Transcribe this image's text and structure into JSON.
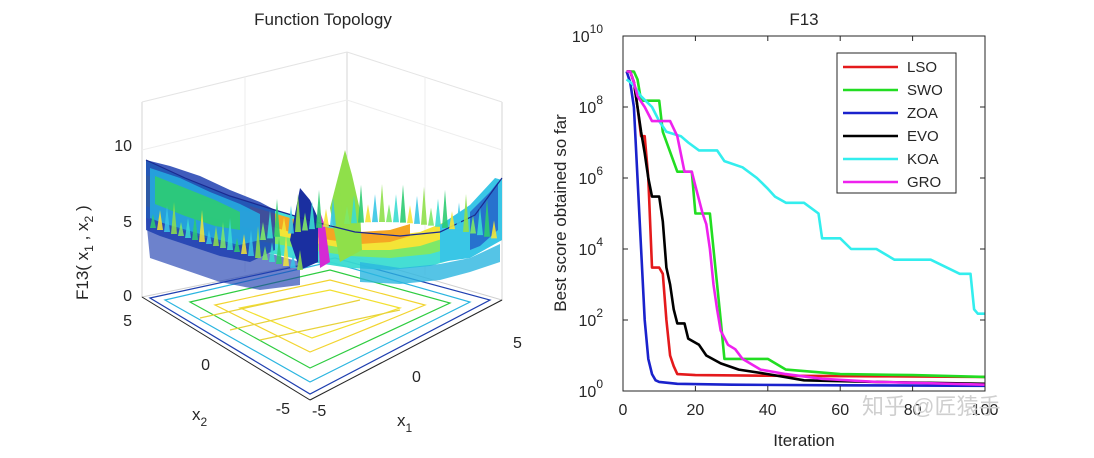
{
  "left_panel": {
    "title": "Function Topology",
    "zlabel": "F13( x",
    "zlabel_sub1": "1",
    "zlabel_mid": " , x",
    "zlabel_sub2": "2",
    "zlabel_end": " )",
    "xlabel": "x",
    "xlabel_sub": "1",
    "ylabel": "x",
    "ylabel_sub": "2",
    "z_ticks": [
      "0",
      "5",
      "10"
    ],
    "x1_ticks": [
      "-5",
      "0",
      "5"
    ],
    "x2_ticks": [
      "-5",
      "0",
      "5"
    ]
  },
  "chart_data": {
    "type": "line",
    "title": "F13",
    "xlabel": "Iteration",
    "ylabel": "Best score obtained so far",
    "xlim": [
      0,
      100
    ],
    "ylim": [
      1,
      10000000000
    ],
    "yscale": "log",
    "x_ticks": [
      "0",
      "20",
      "40",
      "60",
      "80",
      "100"
    ],
    "y_ticks": [
      {
        "base": "10",
        "exp": "0"
      },
      {
        "base": "10",
        "exp": "2"
      },
      {
        "base": "10",
        "exp": "4"
      },
      {
        "base": "10",
        "exp": "6"
      },
      {
        "base": "10",
        "exp": "8"
      },
      {
        "base": "10",
        "exp": "10"
      }
    ],
    "legend_position": "top-right",
    "grid": false,
    "series": [
      {
        "name": "LSO",
        "color": "#e41a1c",
        "points": [
          [
            1,
            1000000000.0
          ],
          [
            2,
            1000000000.0
          ],
          [
            3,
            500000000.0
          ],
          [
            4,
            100000000.0
          ],
          [
            5,
            15000000.0
          ],
          [
            6,
            15000000.0
          ],
          [
            7,
            1000000.0
          ],
          [
            8,
            3000.0
          ],
          [
            10,
            3000.0
          ],
          [
            11,
            2000.0
          ],
          [
            12,
            100
          ],
          [
            13,
            10
          ],
          [
            14,
            5
          ],
          [
            15,
            3
          ],
          [
            20,
            2.8
          ],
          [
            40,
            2.7
          ],
          [
            70,
            2.6
          ],
          [
            100,
            2.5
          ]
        ]
      },
      {
        "name": "SWO",
        "color": "#22dd22",
        "points": [
          [
            1,
            1000000000.0
          ],
          [
            2,
            1000000000.0
          ],
          [
            3,
            1000000000.0
          ],
          [
            4,
            600000000.0
          ],
          [
            5,
            150000000.0
          ],
          [
            10,
            150000000.0
          ],
          [
            11,
            20000000.0
          ],
          [
            15,
            1500000.0
          ],
          [
            19,
            1500000.0
          ],
          [
            20,
            100000.0
          ],
          [
            24,
            100000.0
          ],
          [
            25,
            10000.0
          ],
          [
            26,
            1000.0
          ],
          [
            27,
            100
          ],
          [
            28,
            8
          ],
          [
            40,
            8
          ],
          [
            45,
            4
          ],
          [
            60,
            3
          ],
          [
            80,
            2.8
          ],
          [
            100,
            2.5
          ]
        ]
      },
      {
        "name": "ZOA",
        "color": "#1a22cc",
        "points": [
          [
            1,
            1000000000.0
          ],
          [
            2,
            500000000.0
          ],
          [
            3,
            100000000.0
          ],
          [
            4,
            1000000.0
          ],
          [
            5,
            10000.0
          ],
          [
            6,
            100
          ],
          [
            7,
            8
          ],
          [
            8,
            3
          ],
          [
            9,
            2
          ],
          [
            10,
            1.8
          ],
          [
            15,
            1.6
          ],
          [
            30,
            1.5
          ],
          [
            60,
            1.45
          ],
          [
            100,
            1.4
          ]
        ]
      },
      {
        "name": "EVO",
        "color": "#000000",
        "points": [
          [
            1,
            1000000000.0
          ],
          [
            2,
            1000000000.0
          ],
          [
            3,
            500000000.0
          ],
          [
            4,
            100000000.0
          ],
          [
            5,
            20000000.0
          ],
          [
            6,
            5000000.0
          ],
          [
            7,
            1000000.0
          ],
          [
            8,
            300000.0
          ],
          [
            10,
            300000.0
          ],
          [
            11,
            60000.0
          ],
          [
            12,
            3000.0
          ],
          [
            13,
            1000.0
          ],
          [
            14,
            200
          ],
          [
            15,
            80
          ],
          [
            17,
            80
          ],
          [
            18,
            30
          ],
          [
            21,
            20
          ],
          [
            23,
            10
          ],
          [
            27,
            6
          ],
          [
            32,
            4
          ],
          [
            40,
            3
          ],
          [
            50,
            2
          ],
          [
            70,
            1.8
          ],
          [
            100,
            1.6
          ]
        ]
      },
      {
        "name": "KOA",
        "color": "#33eeee",
        "points": [
          [
            1,
            600000000.0
          ],
          [
            2,
            500000000.0
          ],
          [
            3,
            400000000.0
          ],
          [
            5,
            200000000.0
          ],
          [
            8,
            100000000.0
          ],
          [
            10,
            40000000.0
          ],
          [
            12,
            20000000.0
          ],
          [
            16,
            15000000.0
          ],
          [
            18,
            10000000.0
          ],
          [
            21,
            6000000.0
          ],
          [
            26,
            6000000.0
          ],
          [
            28,
            3000000.0
          ],
          [
            33,
            2000000.0
          ],
          [
            37,
            1000000.0
          ],
          [
            40,
            500000.0
          ],
          [
            42,
            300000.0
          ],
          [
            45,
            200000.0
          ],
          [
            50,
            200000.0
          ],
          [
            54,
            100000.0
          ],
          [
            55,
            20000.0
          ],
          [
            60,
            20000.0
          ],
          [
            63,
            10000.0
          ],
          [
            70,
            10000.0
          ],
          [
            75,
            5000.0
          ],
          [
            85,
            5000.0
          ],
          [
            93,
            2000.0
          ],
          [
            96,
            2000.0
          ],
          [
            97,
            200
          ],
          [
            98,
            150
          ],
          [
            100,
            150
          ]
        ]
      },
      {
        "name": "GRO",
        "color": "#ee22ee",
        "points": [
          [
            1,
            1000000000.0
          ],
          [
            2,
            1000000000.0
          ],
          [
            3,
            500000000.0
          ],
          [
            4,
            200000000.0
          ],
          [
            6,
            100000000.0
          ],
          [
            8,
            40000000.0
          ],
          [
            13,
            40000000.0
          ],
          [
            15,
            15000000.0
          ],
          [
            17,
            1500000.0
          ],
          [
            19,
            1500000.0
          ],
          [
            20,
            600000.0
          ],
          [
            22,
            100000.0
          ],
          [
            23,
            50000.0
          ],
          [
            24,
            10000.0
          ],
          [
            25,
            1000.0
          ],
          [
            26,
            200
          ],
          [
            27,
            50
          ],
          [
            29,
            20
          ],
          [
            31,
            15
          ],
          [
            33,
            8
          ],
          [
            38,
            4
          ],
          [
            45,
            3
          ],
          [
            55,
            2.2
          ],
          [
            70,
            1.8
          ],
          [
            100,
            1.5
          ]
        ]
      }
    ]
  },
  "watermark": "知乎 @匠猿手"
}
